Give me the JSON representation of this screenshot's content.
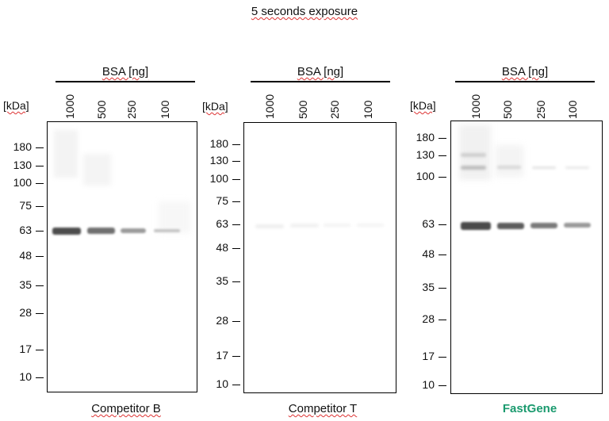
{
  "figure_title": "5 seconds exposure",
  "bsa_label": "BSA [ng]",
  "kda_label": "[kDa]",
  "lanes": [
    "1000",
    "500",
    "250",
    "100"
  ],
  "panels": [
    {
      "caption": "Competitor B",
      "markers": [
        "180",
        "130",
        "100",
        "75",
        "63",
        "48",
        "35",
        "28",
        "17",
        "10"
      ]
    },
    {
      "caption": "Competitor T",
      "markers": [
        "180",
        "130",
        "100",
        "75",
        "63",
        "48",
        "35",
        "28",
        "17",
        "10"
      ]
    },
    {
      "caption": "FastGene",
      "caption_color": "#1a9a6e",
      "markers": [
        "180",
        "130",
        "100",
        "63",
        "48",
        "35",
        "28",
        "17",
        "10"
      ]
    }
  ]
}
